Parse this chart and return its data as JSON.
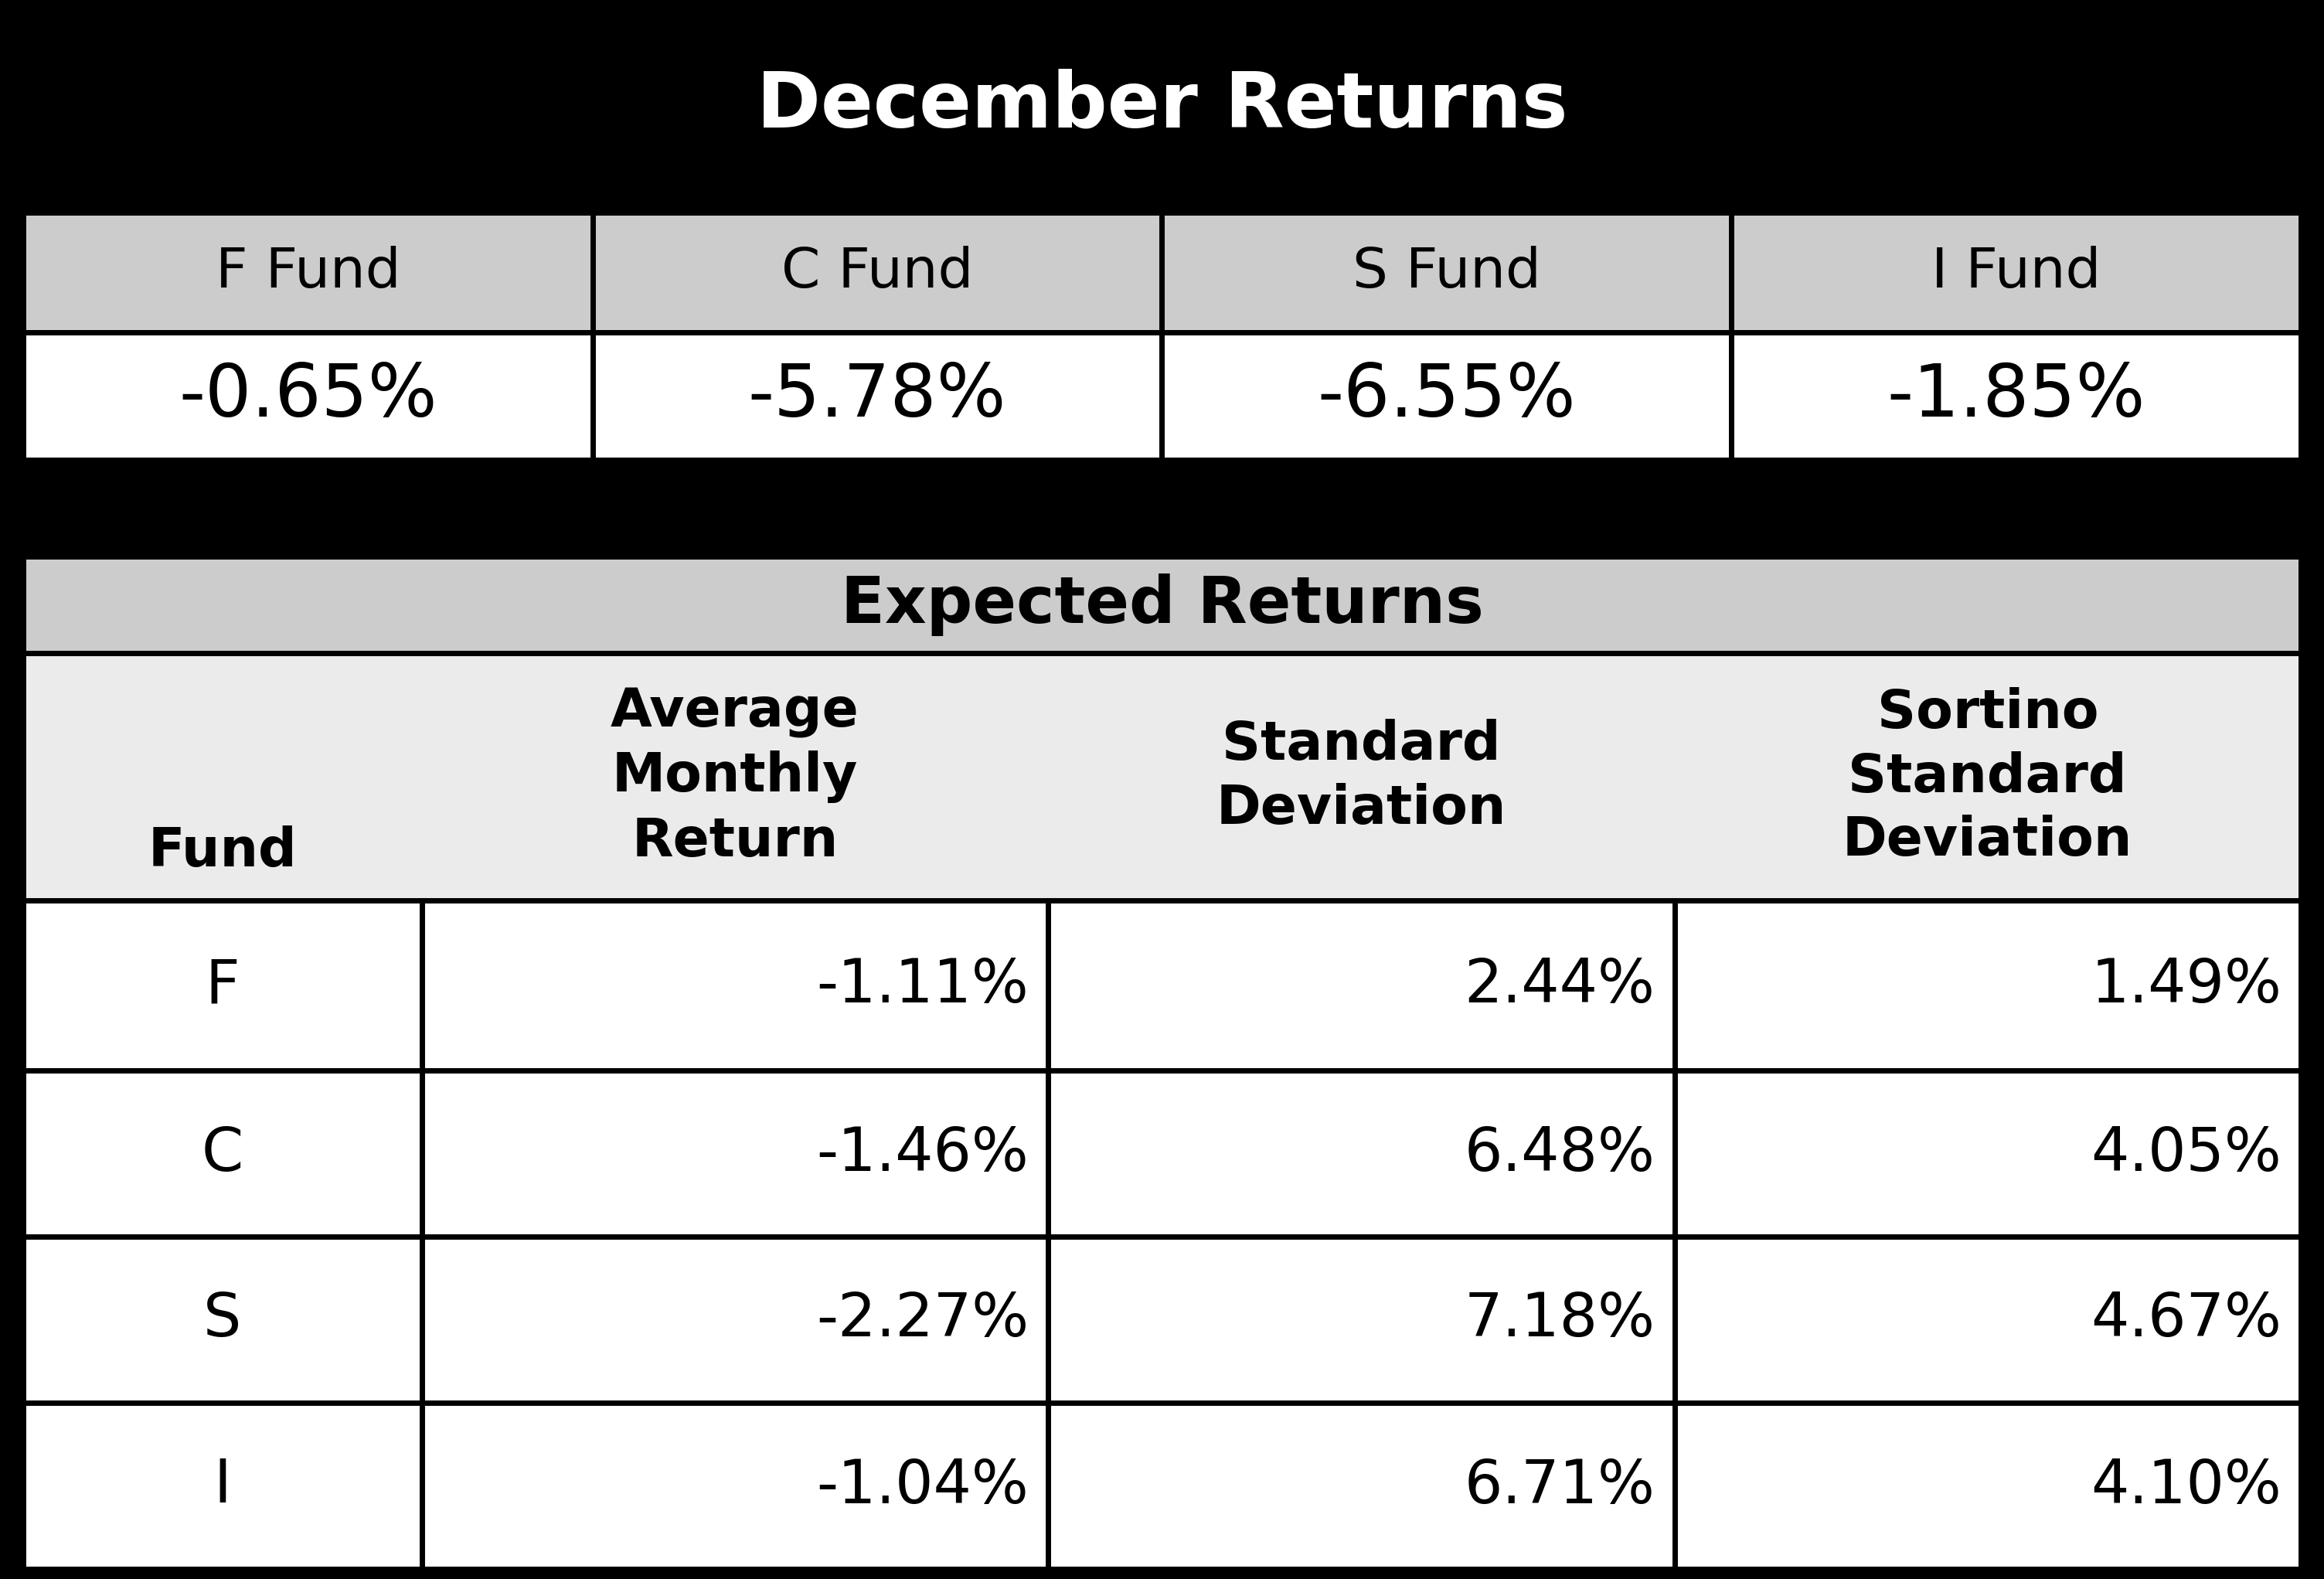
{
  "title1": "December Returns",
  "dec_headers": [
    "F Fund",
    "C Fund",
    "S Fund",
    "I Fund"
  ],
  "dec_values": [
    "-0.65%",
    "-5.78%",
    "-6.55%",
    "-1.85%"
  ],
  "title2": "Expected Returns",
  "exp_col_headers": [
    "Fund",
    "Average\nMonthly\nReturn",
    "Standard\nDeviation",
    "Sortino\nStandard\nDeviation"
  ],
  "exp_rows": [
    [
      "F",
      "-1.11%",
      "2.44%",
      "1.49%"
    ],
    [
      "C",
      "-1.46%",
      "6.48%",
      "4.05%"
    ],
    [
      "S",
      "-2.27%",
      "7.18%",
      "4.67%"
    ],
    [
      "I",
      "-1.04%",
      "6.71%",
      "4.10%"
    ]
  ],
  "bg_black": "#000000",
  "bg_white": "#ffffff",
  "bg_light_gray": "#cccccc",
  "bg_lighter_gray": "#ebebeb",
  "text_white": "#ffffff",
  "text_black": "#000000",
  "border_color": "#000000",
  "title1_fontsize": 72,
  "dec_header_fontsize": 52,
  "dec_value_fontsize": 68,
  "title2_fontsize": 60,
  "exp_header_fontsize": 50,
  "exp_data_fontsize": 56
}
